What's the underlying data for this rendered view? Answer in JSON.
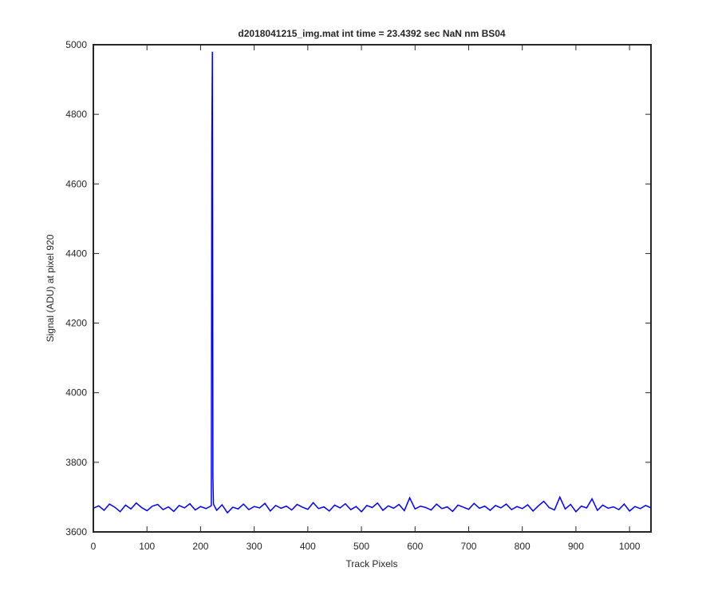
{
  "chart_data": {
    "type": "line",
    "title": "d2018041215_img.mat int time = 23.4392 sec  NaN nm BS04",
    "xlabel": "Track Pixels",
    "ylabel": "Signal (ADU) at pixel 920",
    "xlim": [
      0,
      1040
    ],
    "ylim": [
      3600,
      5000
    ],
    "xticks": [
      0,
      100,
      200,
      300,
      400,
      500,
      600,
      700,
      800,
      900,
      1000
    ],
    "yticks": [
      3600,
      3800,
      4000,
      4200,
      4400,
      4600,
      4800,
      5000
    ],
    "grid": false,
    "x": [
      0,
      10,
      20,
      30,
      40,
      50,
      60,
      70,
      80,
      90,
      100,
      110,
      120,
      130,
      140,
      150,
      160,
      170,
      180,
      190,
      200,
      210,
      220,
      221,
      222,
      223,
      224,
      230,
      240,
      250,
      260,
      270,
      280,
      290,
      300,
      310,
      320,
      330,
      340,
      350,
      360,
      370,
      380,
      390,
      400,
      410,
      420,
      430,
      440,
      450,
      460,
      470,
      480,
      490,
      500,
      510,
      520,
      530,
      540,
      550,
      560,
      570,
      580,
      590,
      600,
      610,
      620,
      630,
      640,
      650,
      660,
      670,
      680,
      690,
      700,
      710,
      720,
      730,
      740,
      750,
      760,
      770,
      780,
      790,
      800,
      810,
      820,
      830,
      840,
      850,
      860,
      870,
      880,
      890,
      900,
      910,
      920,
      930,
      940,
      950,
      960,
      970,
      980,
      990,
      1000,
      1010,
      1020,
      1030,
      1040
    ],
    "series": [
      {
        "name": "signal",
        "color": "#0000ff",
        "values": [
          3668,
          3675,
          3662,
          3680,
          3671,
          3658,
          3677,
          3666,
          3683,
          3670,
          3661,
          3674,
          3679,
          3664,
          3672,
          3659,
          3676,
          3669,
          3681,
          3663,
          3673,
          3667,
          3675,
          4735,
          4980,
          3760,
          3680,
          3662,
          3678,
          3655,
          3671,
          3666,
          3680,
          3664,
          3673,
          3669,
          3682,
          3660,
          3676,
          3668,
          3674,
          3663,
          3679,
          3671,
          3665,
          3684,
          3667,
          3672,
          3660,
          3677,
          3669,
          3681,
          3664,
          3673,
          3658,
          3676,
          3670,
          3683,
          3662,
          3675,
          3668,
          3679,
          3661,
          3698,
          3666,
          3674,
          3670,
          3663,
          3680,
          3667,
          3672,
          3659,
          3677,
          3671,
          3665,
          3682,
          3668,
          3674,
          3662,
          3676,
          3669,
          3680,
          3664,
          3673,
          3667,
          3678,
          3660,
          3675,
          3688,
          3670,
          3663,
          3700,
          3666,
          3679,
          3658,
          3674,
          3669,
          3695,
          3662,
          3677,
          3668,
          3672,
          3664,
          3680,
          3660,
          3673,
          3667,
          3676,
          3669
        ]
      }
    ]
  }
}
